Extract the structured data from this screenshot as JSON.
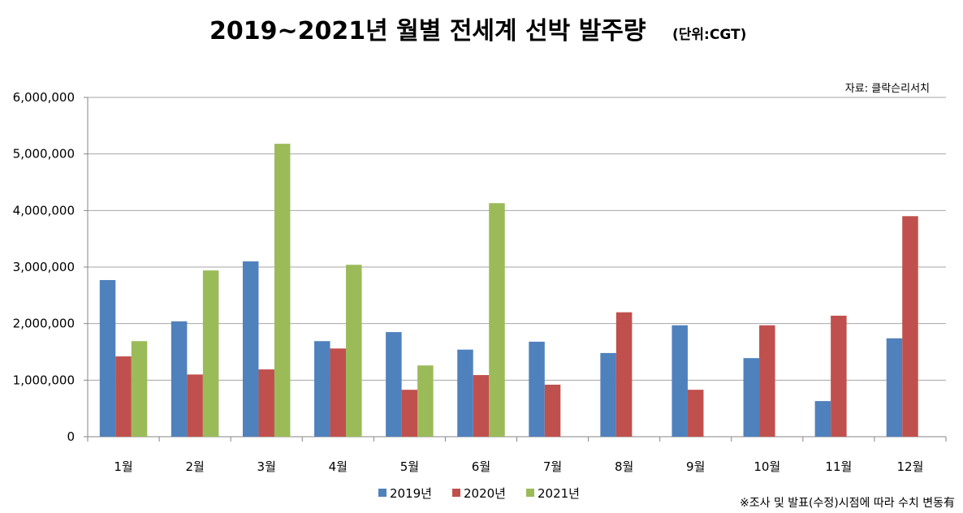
{
  "chart_data": {
    "type": "bar",
    "title": "2019~2021년 월별 전세계 선박 발주량",
    "unit_label": "(단위:CGT)",
    "source": "자료: 클락슨리서치",
    "footnote": "※조사 및 발표(수정)시점에 따라 수치 변동有",
    "categories": [
      "1월",
      "2월",
      "3월",
      "4월",
      "5월",
      "6월",
      "7월",
      "8월",
      "9월",
      "10월",
      "11월",
      "12월"
    ],
    "ylim": [
      0,
      6000000
    ],
    "yticks": [
      0,
      1000000,
      2000000,
      3000000,
      4000000,
      5000000,
      6000000
    ],
    "ytick_labels": [
      "0",
      "1,000,000",
      "2,000,000",
      "3,000,000",
      "4,000,000",
      "5,000,000",
      "6,000,000"
    ],
    "grid": true,
    "legend_position": "bottom",
    "series": [
      {
        "name": "2019년",
        "color": "#4F81BD",
        "values": [
          2770000,
          2040000,
          3100000,
          1690000,
          1850000,
          1540000,
          1680000,
          1480000,
          1970000,
          1390000,
          630000,
          1740000
        ]
      },
      {
        "name": "2020년",
        "color": "#C0504D",
        "values": [
          1420000,
          1100000,
          1190000,
          1560000,
          830000,
          1090000,
          920000,
          2200000,
          830000,
          1970000,
          2140000,
          3900000
        ]
      },
      {
        "name": "2021년",
        "color": "#9BBB59",
        "values": [
          1690000,
          2940000,
          5180000,
          3040000,
          1260000,
          4130000,
          null,
          null,
          null,
          null,
          null,
          null
        ]
      }
    ]
  }
}
